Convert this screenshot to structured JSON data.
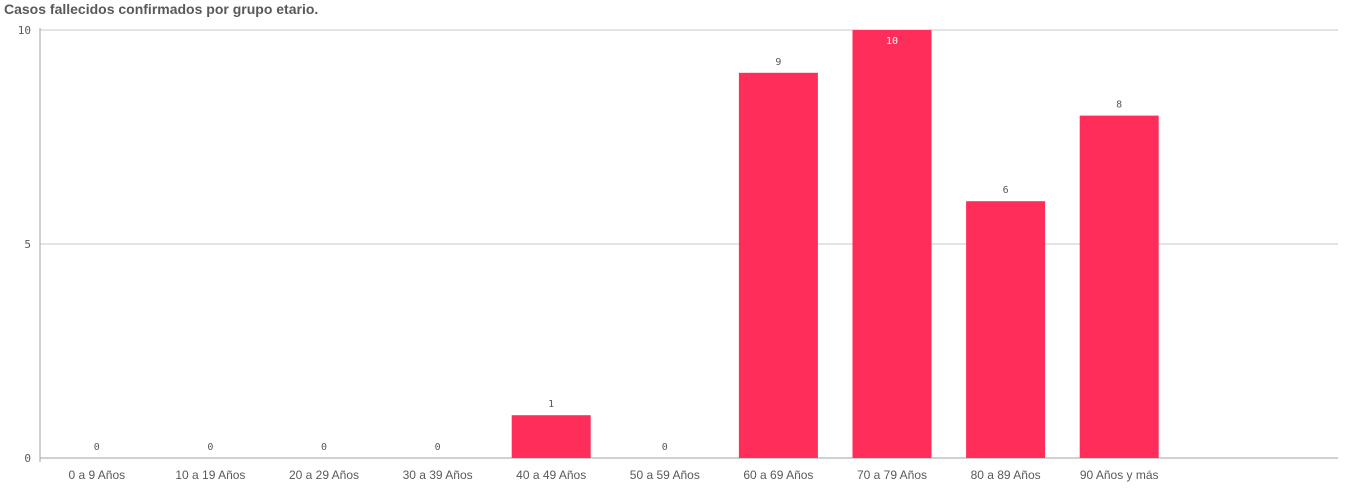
{
  "chart_data": {
    "type": "bar",
    "title": "Casos fallecidos confirmados por grupo etario.",
    "categories": [
      "0 a 9 Años",
      "10 a 19 Años",
      "20 a 29 Años",
      "30 a 39 Años",
      "40 a 49 Años",
      "50 a 59 Años",
      "60 a 69 Años",
      "70 a 79 Años",
      "80 a 89 Años",
      "90 Años y más"
    ],
    "values": [
      0,
      0,
      0,
      0,
      1,
      0,
      9,
      10,
      6,
      8
    ],
    "xlabel": "",
    "ylabel": "",
    "ylim": [
      0,
      10
    ],
    "yticks": [
      0,
      5,
      10
    ],
    "grid": true,
    "legend": "none",
    "data_labels": true,
    "colors": {
      "bar": "#ff2d5a",
      "grid": "#c8c8c8",
      "axis": "#a0a0a0",
      "text": "#595959"
    }
  }
}
